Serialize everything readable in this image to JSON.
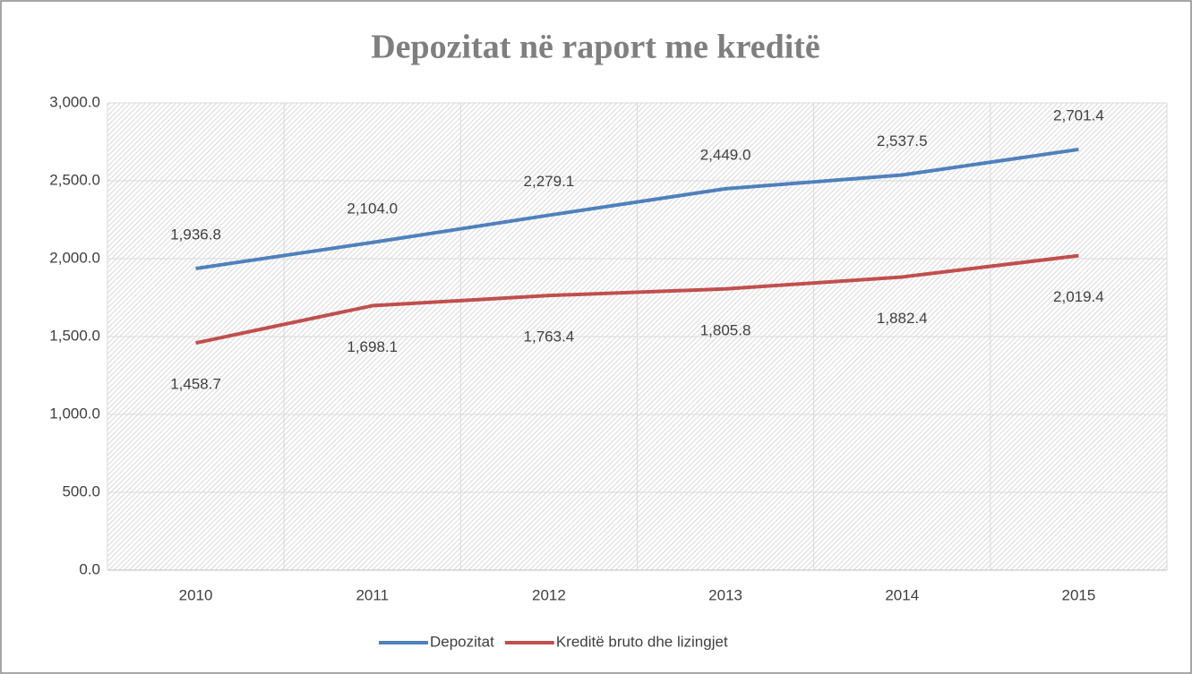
{
  "chart_data": {
    "type": "line",
    "title": "Depozitat në raport me kreditë",
    "categories": [
      "2010",
      "2011",
      "2012",
      "2013",
      "2014",
      "2015"
    ],
    "series": [
      {
        "name": "Depozitat",
        "color": "#4f81bd",
        "values": [
          1936.8,
          2104.0,
          2279.1,
          2449.0,
          2537.5,
          2701.4
        ],
        "value_labels": [
          "1,936.8",
          "2,104.0",
          "2,279.1",
          "2,449.0",
          "2,537.5",
          "2,701.4"
        ]
      },
      {
        "name": "Kreditë bruto dhe lizingjet",
        "color": "#c0504d",
        "values": [
          1458.7,
          1698.1,
          1763.4,
          1805.8,
          1882.4,
          2019.4
        ],
        "value_labels": [
          "1,458.7",
          "1,698.1",
          "1,763.4",
          "1,805.8",
          "1,882.4",
          "2,019.4"
        ]
      }
    ],
    "ylim": [
      0,
      3000
    ],
    "yticks": [
      {
        "value": 0,
        "label": "0.0"
      },
      {
        "value": 500,
        "label": "500.0"
      },
      {
        "value": 1000,
        "label": "1,000.0"
      },
      {
        "value": 1500,
        "label": "1,500.0"
      },
      {
        "value": 2000,
        "label": "2,000.0"
      },
      {
        "value": 2500,
        "label": "2,500.0"
      },
      {
        "value": 3000,
        "label": "3,000.0"
      }
    ],
    "grid": true,
    "legend": "bottom"
  }
}
